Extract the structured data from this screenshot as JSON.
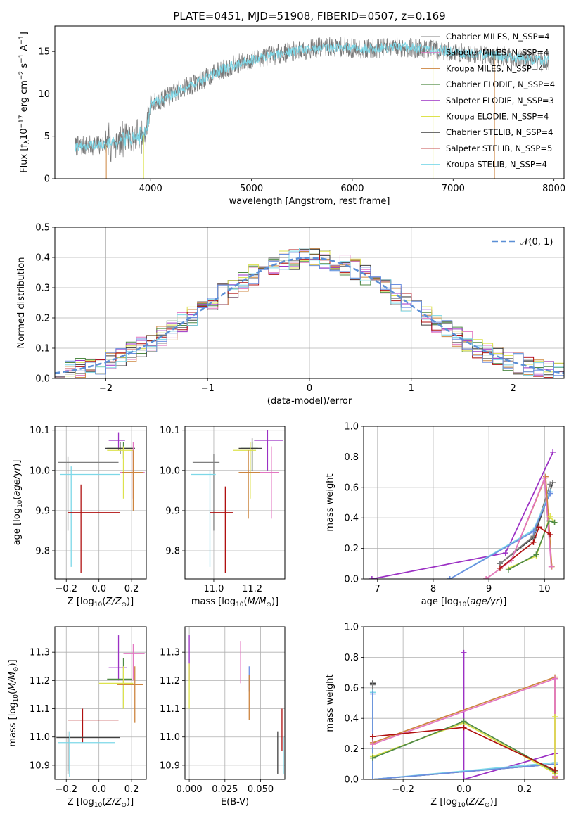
{
  "figure_title": "PLATE=0451, MJD=51908, FIBERID=0507, z=0.169",
  "chart_data": [
    {
      "id": "spectrum",
      "type": "line",
      "xlabel": "wavelength [Angstrom, rest frame]",
      "ylabel": "Flux [f_λ 10^-17 erg cm^-2 s^-1 A^-1]",
      "xlim": [
        3050,
        8100
      ],
      "ylim": [
        0,
        18
      ],
      "xticks": [
        4000,
        5000,
        6000,
        7000,
        8000
      ],
      "yticks": [
        0,
        5,
        10,
        15
      ],
      "grid": false,
      "legend_position": "right",
      "legend": [
        {
          "label": "Chabrier MILES, N_SSP=4",
          "color": "#7f7f7f"
        },
        {
          "label": "Salpeter MILES, N_SSP=4",
          "color": "#e377c2"
        },
        {
          "label": "Kroupa MILES, N_SSP=4",
          "color": "#cd853f"
        },
        {
          "label": "Chabrier ELODIE, N_SSP=4",
          "color": "#4f8a45"
        },
        {
          "label": "Salpeter ELODIE, N_SSP=3",
          "color": "#9b30c4"
        },
        {
          "label": "Kroupa ELODIE, N_SSP=4",
          "color": "#dde24c"
        },
        {
          "label": "Chabrier STELIB, N_SSP=4",
          "color": "#3f3f3f"
        },
        {
          "label": "Salpeter STELIB, N_SSP=5",
          "color": "#b01010"
        },
        {
          "label": "Kroupa STELIB, N_SSP=4",
          "color": "#7dd8e8"
        }
      ],
      "data_color": "#777777",
      "model_color": "#7dd8e8",
      "continuum": {
        "x": [
          3250,
          3400,
          3550,
          3700,
          3850,
          3950,
          4000,
          4150,
          4300,
          4500,
          4700,
          4900,
          5100,
          5300,
          5500,
          5700,
          5900,
          6100,
          6300,
          6500,
          6700,
          6900,
          7100,
          7300,
          7500,
          7700,
          7900
        ],
        "y": [
          3.8,
          3.9,
          4.0,
          4.5,
          5.0,
          5.2,
          8.8,
          9.5,
          10.5,
          11.6,
          12.8,
          13.7,
          14.3,
          14.8,
          15.2,
          15.5,
          15.5,
          15.3,
          15.4,
          15.5,
          15.3,
          15.1,
          14.8,
          14.6,
          14.4,
          14.1,
          13.9
        ]
      }
    },
    {
      "id": "residuals",
      "type": "step",
      "xlabel": "(data-model)/error",
      "ylabel": "Normed distribution",
      "xlim": [
        -2.5,
        2.5
      ],
      "ylim": [
        0,
        0.5
      ],
      "xticks": [
        -2,
        -1,
        0,
        1,
        2
      ],
      "yticks": [
        0.0,
        0.1,
        0.2,
        0.3,
        0.4,
        0.5
      ],
      "grid": true,
      "legend_position": "upper right",
      "legend": [
        {
          "label": "𝒩(0, 1)",
          "color": "#5b8fd6",
          "style": "dashed"
        }
      ],
      "series_colors": [
        "#7f7f7f",
        "#e377c2",
        "#cd853f",
        "#4f8a45",
        "#9b30c4",
        "#dde24c",
        "#3f3f3f",
        "#b01010",
        "#7dd8e8",
        "#6b8fe0"
      ]
    },
    {
      "id": "age_vs_Z",
      "type": "errorbar",
      "xlabel": "Z [log10(Z/Z⊙)]",
      "ylabel": "age [log10(age/yr)]",
      "xlim": [
        -0.27,
        0.29
      ],
      "ylim": [
        9.73,
        10.11
      ],
      "xticks": [
        -0.2,
        0.0,
        0.2
      ],
      "xticklabels": [
        "−0.2",
        "0.0",
        "0.2"
      ],
      "yticks": [
        9.8,
        9.9,
        10.0,
        10.1
      ],
      "grid": true,
      "points": [
        {
          "c": "#9b30c4",
          "x": 0.12,
          "xe": [
            0.06,
            0.16
          ],
          "y": 10.075,
          "ye": [
            10.05,
            10.095
          ]
        },
        {
          "c": "#4f8a45",
          "x": 0.15,
          "xe": [
            0.05,
            0.22
          ],
          "y": 10.055,
          "ye": [
            10.03,
            10.07
          ]
        },
        {
          "c": "#3f3f3f",
          "x": 0.13,
          "xe": [
            0.04,
            0.22
          ],
          "y": 10.055,
          "ye": [
            10.04,
            10.07
          ]
        },
        {
          "c": "#dde24c",
          "x": 0.15,
          "xe": [
            0.05,
            0.21
          ],
          "y": 10.05,
          "ye": [
            9.93,
            10.06
          ]
        },
        {
          "c": "#e377c2",
          "x": 0.21,
          "xe": [
            0.13,
            0.28
          ],
          "y": 9.995,
          "ye": [
            9.93,
            10.07
          ]
        },
        {
          "c": "#cd853f",
          "x": 0.21,
          "xe": [
            0.14,
            0.27
          ],
          "y": 9.995,
          "ye": [
            9.9,
            10.05
          ]
        },
        {
          "c": "#7f7f7f",
          "x": -0.19,
          "xe": [
            -0.25,
            0.12
          ],
          "y": 10.02,
          "ye": [
            9.85,
            10.035
          ]
        },
        {
          "c": "#7dd8e8",
          "x": -0.17,
          "xe": [
            -0.24,
            0.13
          ],
          "y": 9.99,
          "ye": [
            9.76,
            10.01
          ]
        },
        {
          "c": "#b01010",
          "x": -0.11,
          "xe": [
            -0.19,
            0.13
          ],
          "y": 9.895,
          "ye": [
            9.745,
            9.965
          ]
        }
      ]
    },
    {
      "id": "age_vs_mass",
      "type": "errorbar",
      "xlabel": "mass [log10(M/M⊙)]",
      "xlim": [
        10.85,
        11.37
      ],
      "ylim": [
        9.73,
        10.11
      ],
      "xticks": [
        11.0,
        11.2
      ],
      "xticklabels": [
        "11.0",
        "11.2"
      ],
      "yticks": [
        9.8,
        9.9,
        10.0,
        10.1
      ],
      "grid": true,
      "points": [
        {
          "c": "#9b30c4",
          "x": 11.28,
          "xe": [
            11.21,
            11.36
          ],
          "y": 10.075,
          "ye": [
            10.0,
            10.1
          ]
        },
        {
          "c": "#4f8a45",
          "x": 11.2,
          "xe": [
            11.14,
            11.23
          ],
          "y": 10.055,
          "ye": [
            10.0,
            10.07
          ]
        },
        {
          "c": "#3f3f3f",
          "x": 11.2,
          "xe": [
            11.13,
            11.25
          ],
          "y": 10.055,
          "ye": [
            10.0,
            10.08
          ]
        },
        {
          "c": "#dde24c",
          "x": 11.19,
          "xe": [
            11.1,
            11.22
          ],
          "y": 10.05,
          "ye": [
            9.93,
            10.07
          ]
        },
        {
          "c": "#e377c2",
          "x": 11.3,
          "xe": [
            11.18,
            11.34
          ],
          "y": 9.995,
          "ye": [
            9.88,
            10.06
          ]
        },
        {
          "c": "#cd853f",
          "x": 11.18,
          "xe": [
            11.13,
            11.24
          ],
          "y": 9.995,
          "ye": [
            9.88,
            10.05
          ]
        },
        {
          "c": "#7f7f7f",
          "x": 11.0,
          "xe": [
            10.89,
            11.03
          ],
          "y": 10.02,
          "ye": [
            9.85,
            10.04
          ]
        },
        {
          "c": "#7dd8e8",
          "x": 10.98,
          "xe": [
            10.88,
            11.01
          ],
          "y": 9.99,
          "ye": [
            9.76,
            10.0
          ]
        },
        {
          "c": "#b01010",
          "x": 11.06,
          "xe": [
            10.98,
            11.1
          ],
          "y": 9.895,
          "ye": [
            9.745,
            9.96
          ]
        }
      ]
    },
    {
      "id": "massweight_vs_age",
      "type": "line",
      "xlabel": "age [log10(age/yr)]",
      "ylabel": "mass weight",
      "xlim": [
        6.75,
        10.35
      ],
      "ylim": [
        0,
        1
      ],
      "xticks": [
        7,
        8,
        9,
        10
      ],
      "yticks": [
        0.0,
        0.2,
        0.4,
        0.6,
        0.8,
        1.0
      ],
      "grid": true,
      "series": [
        {
          "c": "#9b30c4",
          "x": [
            6.9,
            9.3,
            10.15
          ],
          "y": [
            0.0,
            0.17,
            0.83
          ]
        },
        {
          "c": "#3f3f3f",
          "x": [
            9.2,
            9.8,
            10.15
          ],
          "y": [
            0.1,
            0.27,
            0.63
          ]
        },
        {
          "c": "#7f7f7f",
          "x": [
            9.2,
            9.8,
            10.1
          ],
          "y": [
            0.1,
            0.28,
            0.62
          ]
        },
        {
          "c": "#7dd8e8",
          "x": [
            8.3,
            9.8,
            10.1
          ],
          "y": [
            0.0,
            0.32,
            0.57
          ]
        },
        {
          "c": "#6b8fe0",
          "x": [
            8.3,
            9.8,
            10.1
          ],
          "y": [
            0.0,
            0.31,
            0.56
          ]
        },
        {
          "c": "#cd853f",
          "x": [
            8.95,
            9.4,
            10.02,
            10.13
          ],
          "y": [
            0.0,
            0.12,
            0.67,
            0.08
          ]
        },
        {
          "c": "#e377c2",
          "x": [
            8.95,
            9.4,
            10.0,
            10.12
          ],
          "y": [
            0.0,
            0.12,
            0.66,
            0.08
          ]
        },
        {
          "c": "#dde24c",
          "x": [
            9.35,
            9.85,
            10.1,
            10.18
          ],
          "y": [
            0.07,
            0.15,
            0.41,
            0.37
          ]
        },
        {
          "c": "#4f8a45",
          "x": [
            9.35,
            9.85,
            10.08,
            10.18
          ],
          "y": [
            0.06,
            0.16,
            0.38,
            0.37
          ]
        },
        {
          "c": "#b01010",
          "x": [
            9.2,
            9.8,
            9.9,
            10.1
          ],
          "y": [
            0.07,
            0.24,
            0.34,
            0.29
          ]
        }
      ]
    },
    {
      "id": "mass_vs_Z",
      "type": "errorbar",
      "xlabel": "Z [log10(Z/Z⊙)]",
      "ylabel": "mass [log10(M/M⊙)]",
      "xlim": [
        -0.27,
        0.29
      ],
      "ylim": [
        10.85,
        11.39
      ],
      "xticks": [
        -0.2,
        0.0,
        0.2
      ],
      "xticklabels": [
        "−0.2",
        "0.0",
        "0.2"
      ],
      "yticks": [
        10.9,
        11.0,
        11.1,
        11.2,
        11.3
      ],
      "grid": true,
      "points": [
        {
          "c": "#9b30c4",
          "x": 0.12,
          "xe": [
            0.06,
            0.17
          ],
          "y": 11.245,
          "ye": [
            11.2,
            11.36
          ]
        },
        {
          "c": "#e377c2",
          "x": 0.21,
          "xe": [
            0.15,
            0.28
          ],
          "y": 11.295,
          "ye": [
            11.2,
            11.33
          ]
        },
        {
          "c": "#4f8a45",
          "x": 0.15,
          "xe": [
            0.05,
            0.2
          ],
          "y": 11.205,
          "ye": [
            11.1,
            11.28
          ]
        },
        {
          "c": "#dde24c",
          "x": 0.15,
          "xe": [
            0.0,
            0.21
          ],
          "y": 11.19,
          "ye": [
            11.1,
            11.25
          ]
        },
        {
          "c": "#cd853f",
          "x": 0.22,
          "xe": [
            0.11,
            0.27
          ],
          "y": 11.185,
          "ye": [
            11.05,
            11.25
          ]
        },
        {
          "c": "#b01010",
          "x": -0.1,
          "xe": [
            -0.19,
            0.12
          ],
          "y": 11.06,
          "ye": [
            10.98,
            11.1
          ]
        },
        {
          "c": "#7f7f7f",
          "x": -0.19,
          "xe": [
            -0.26,
            0.13
          ],
          "y": 10.998,
          "ye": [
            10.88,
            11.02
          ]
        },
        {
          "c": "#3f3f3f",
          "x": -0.19,
          "xe": [
            -0.26,
            0.13
          ],
          "y": 10.998,
          "ye": [
            10.87,
            11.0
          ]
        },
        {
          "c": "#7dd8e8",
          "x": -0.18,
          "xe": [
            -0.25,
            0.1
          ],
          "y": 10.98,
          "ye": [
            10.86,
            11.02
          ]
        }
      ]
    },
    {
      "id": "mass_vs_EBV",
      "type": "errorbar",
      "xlabel": "E(B-V)",
      "xlim": [
        -0.003,
        0.067
      ],
      "ylim": [
        10.85,
        11.39
      ],
      "xticks": [
        0.0,
        0.025,
        0.05
      ],
      "xticklabels": [
        "0.000",
        "0.025",
        "0.050"
      ],
      "yticks": [
        10.9,
        11.0,
        11.1,
        11.2,
        11.3
      ],
      "grid": true,
      "points": [
        {
          "c": "#9b30c4",
          "x": 0.0,
          "y": 11.28,
          "ye": [
            11.2,
            11.36
          ]
        },
        {
          "c": "#dde24c",
          "x": 0.0,
          "y": 11.19,
          "ye": [
            11.1,
            11.26
          ]
        },
        {
          "c": "#e377c2",
          "x": 0.036,
          "y": 11.27,
          "ye": [
            11.19,
            11.34
          ]
        },
        {
          "c": "#6b8fe0",
          "x": 0.042,
          "y": 11.2,
          "ye": [
            11.16,
            11.25
          ]
        },
        {
          "c": "#cd853f",
          "x": 0.042,
          "y": 11.15,
          "ye": [
            11.06,
            11.22
          ]
        },
        {
          "c": "#3f3f3f",
          "x": 0.062,
          "y": 10.95,
          "ye": [
            10.87,
            11.02
          ]
        },
        {
          "c": "#b01010",
          "x": 0.065,
          "y": 11.04,
          "ye": [
            10.95,
            11.1
          ]
        },
        {
          "c": "#7dd8e8",
          "x": 0.066,
          "y": 10.94,
          "ye": [
            10.87,
            11.0
          ]
        }
      ]
    },
    {
      "id": "massweight_vs_Z",
      "type": "line",
      "xlabel": "Z [log10(Z/Z⊙)]",
      "ylabel": "mass weight",
      "xlim": [
        -0.33,
        0.33
      ],
      "ylim": [
        0,
        1
      ],
      "xticks": [
        -0.2,
        0.0,
        0.2
      ],
      "xticklabels": [
        "−0.2",
        "0.0",
        "0.2"
      ],
      "yticks": [
        0.0,
        0.2,
        0.4,
        0.6,
        0.8,
        1.0
      ],
      "grid": true,
      "series": [
        {
          "c": "#9b30c4",
          "x": [
            0.0,
            0.0,
            0.0,
            0.3
          ],
          "y": [
            0.83,
            0.0,
            0.0,
            0.17
          ]
        },
        {
          "c": "#3f3f3f",
          "x": [
            -0.3,
            -0.3,
            0.3
          ],
          "y": [
            0.63,
            0.0,
            0.1
          ]
        },
        {
          "c": "#7f7f7f",
          "x": [
            -0.3,
            -0.3,
            0.3
          ],
          "y": [
            0.62,
            0.0,
            0.1
          ]
        },
        {
          "c": "#7dd8e8",
          "x": [
            -0.3,
            -0.3,
            0.3
          ],
          "y": [
            0.57,
            0.0,
            0.11
          ]
        },
        {
          "c": "#6b8fe0",
          "x": [
            -0.3,
            -0.3,
            0.3
          ],
          "y": [
            0.56,
            0.0,
            0.1
          ]
        },
        {
          "c": "#cd853f",
          "x": [
            -0.3,
            0.3,
            0.3
          ],
          "y": [
            0.24,
            0.67,
            0.01
          ]
        },
        {
          "c": "#e377c2",
          "x": [
            -0.3,
            0.3,
            0.3
          ],
          "y": [
            0.23,
            0.66,
            0.02
          ]
        },
        {
          "c": "#dde24c",
          "x": [
            -0.3,
            0.0,
            0.3,
            0.3
          ],
          "y": [
            0.15,
            0.37,
            0.04,
            0.41
          ]
        },
        {
          "c": "#4f8a45",
          "x": [
            -0.3,
            0.0,
            0.3,
            0.3
          ],
          "y": [
            0.14,
            0.38,
            0.05,
            0.06
          ]
        },
        {
          "c": "#b01010",
          "x": [
            -0.3,
            0.0,
            0.3
          ],
          "y": [
            0.28,
            0.34,
            0.06
          ]
        }
      ]
    }
  ]
}
